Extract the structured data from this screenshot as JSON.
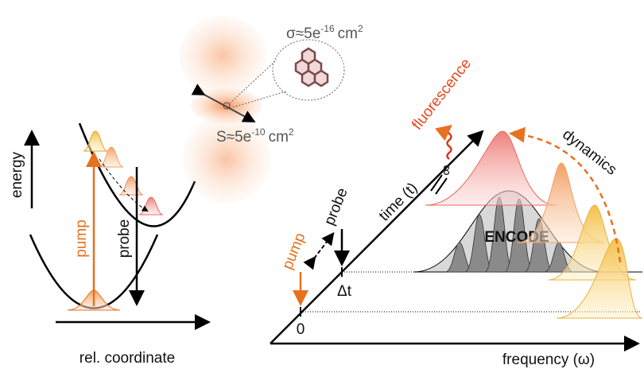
{
  "left_panel": {
    "y_axis_label": "energy",
    "x_axis_label": "rel. coordinate",
    "pump_label": "pump",
    "probe_label": "probe"
  },
  "beam": {
    "cross_section": {
      "prefix": "σ≈5e",
      "exponent": "-16",
      "unit": "cm",
      "unit_exponent": "2"
    },
    "spot_area": {
      "prefix": "S≈5e",
      "exponent": "-10",
      "unit": "cm",
      "unit_exponent": "2"
    }
  },
  "right_panel": {
    "fluorescence_label": "fluorescence",
    "time_axis_label": "time (t)",
    "infinity_label": "∞",
    "probe_label": "probe",
    "pump_label": "pump",
    "delay_label": "Δt",
    "zero_label": "0",
    "encode_label": "ENCODE",
    "dynamics_label": "dynamics",
    "x_axis_label": "frequency (ω)"
  }
}
